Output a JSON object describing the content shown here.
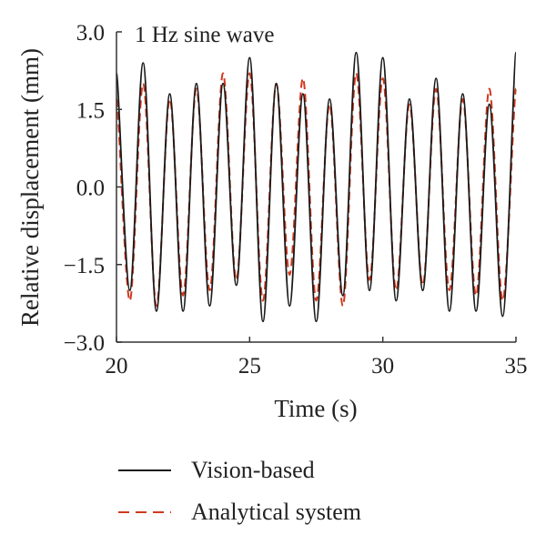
{
  "chart_data": {
    "type": "line",
    "annotation": "1 Hz sine wave",
    "xlabel": "Time (s)",
    "ylabel": "Relative displacement (mm)",
    "xlim": [
      20,
      35
    ],
    "ylim": [
      -3.0,
      3.0
    ],
    "xticks": [
      20,
      25,
      30,
      35
    ],
    "xtick_labels": [
      "20",
      "25",
      "30",
      "35"
    ],
    "yticks": [
      -3.0,
      -1.5,
      0.0,
      1.5,
      3.0
    ],
    "ytick_labels": [
      "−3.0",
      "−1.5",
      "0.0",
      "1.5",
      "3.0"
    ],
    "legend_position": "bottom",
    "series": [
      {
        "name": "Vision-based",
        "color": "#1a1a1a",
        "style": "solid",
        "x": [
          20.0,
          20.5,
          21.0,
          21.5,
          22.0,
          22.5,
          23.0,
          23.5,
          24.0,
          24.5,
          25.0,
          25.5,
          26.0,
          26.5,
          27.0,
          27.5,
          28.0,
          28.5,
          29.0,
          29.5,
          30.0,
          30.5,
          31.0,
          31.5,
          32.0,
          32.5,
          33.0,
          33.5,
          34.0,
          34.5,
          35.0
        ],
        "y": [
          2.2,
          -2.0,
          2.4,
          -2.4,
          1.8,
          -2.4,
          2.0,
          -2.3,
          2.0,
          -1.9,
          2.5,
          -2.6,
          2.0,
          -2.3,
          1.8,
          -2.6,
          1.7,
          -2.1,
          2.6,
          -2.0,
          2.5,
          -2.2,
          1.7,
          -2.0,
          2.1,
          -2.4,
          1.8,
          -2.4,
          1.6,
          -2.5,
          2.6
        ]
      },
      {
        "name": "Analytical system",
        "color": "#d0391f",
        "style": "dashed",
        "x": [
          20.0,
          20.5,
          21.0,
          21.5,
          22.0,
          22.5,
          23.0,
          23.5,
          24.0,
          24.5,
          25.0,
          25.5,
          26.0,
          26.5,
          27.0,
          27.5,
          28.0,
          28.5,
          29.0,
          29.5,
          30.0,
          30.5,
          31.0,
          31.5,
          32.0,
          32.5,
          33.0,
          33.5,
          34.0,
          34.5,
          35.0
        ],
        "y": [
          1.7,
          -2.2,
          2.0,
          -2.3,
          1.7,
          -2.1,
          1.9,
          -2.0,
          2.2,
          -1.8,
          2.2,
          -2.2,
          2.0,
          -1.7,
          2.1,
          -2.2,
          1.6,
          -2.3,
          2.2,
          -1.8,
          2.1,
          -2.0,
          1.6,
          -1.9,
          1.9,
          -2.0,
          1.7,
          -2.1,
          1.9,
          -2.2,
          1.9
        ]
      }
    ]
  }
}
